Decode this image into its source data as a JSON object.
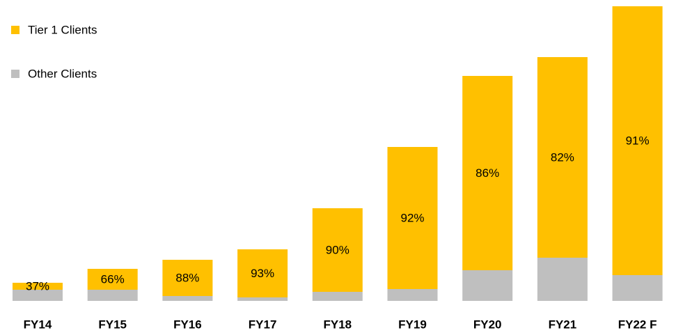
{
  "chart_data": {
    "type": "stacked_bar",
    "categories": [
      "FY14",
      "FY15",
      "FY16",
      "FY17",
      "FY18",
      "FY19",
      "FY20",
      "FY21",
      "FY22 F"
    ],
    "series": [
      {
        "name": "Tier 1 Clients",
        "color": "#ffc000",
        "values": [
          10,
          30,
          52,
          69,
          120,
          204,
          279,
          288,
          386
        ]
      },
      {
        "name": "Other Clients",
        "color": "#bfbfbf",
        "values": [
          16,
          16,
          7,
          5,
          13,
          17,
          44,
          62,
          37
        ]
      }
    ],
    "share_labels": [
      "37%",
      "66%",
      "88%",
      "93%",
      "90%",
      "92%",
      "86%",
      "82%",
      "91%"
    ],
    "ylim": [
      0,
      430
    ],
    "legend": "top-left"
  }
}
